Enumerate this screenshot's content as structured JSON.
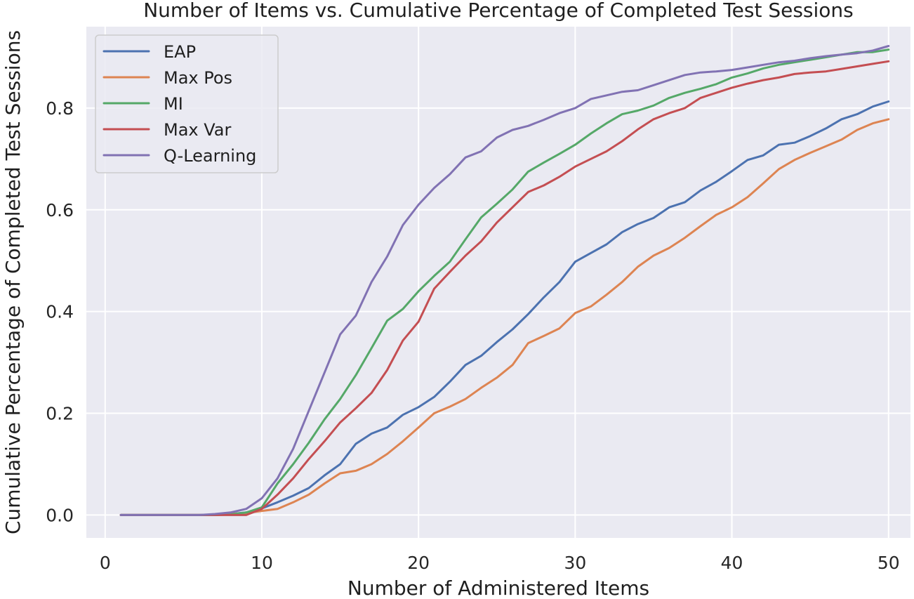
{
  "chart_data": {
    "type": "line",
    "title": "Number of Items vs. Cumulative Percentage of Completed Test Sessions",
    "xlabel": "Number of Administered Items",
    "ylabel": "Cumulative Percentage of Completed Test Sessions",
    "xlim": [
      -1.2,
      51.4
    ],
    "ylim": [
      -0.045,
      0.96
    ],
    "xticks": [
      0,
      10,
      20,
      30,
      40,
      50
    ],
    "yticks": [
      0.0,
      0.2,
      0.4,
      0.6,
      0.8
    ],
    "xtick_labels": [
      "0",
      "10",
      "20",
      "30",
      "40",
      "50"
    ],
    "ytick_labels": [
      "0.0",
      "0.2",
      "0.4",
      "0.6",
      "0.8"
    ],
    "grid": true,
    "legend_position": "top-left",
    "x": [
      1,
      2,
      3,
      4,
      5,
      6,
      7,
      8,
      9,
      10,
      11,
      12,
      13,
      14,
      15,
      16,
      17,
      18,
      19,
      20,
      21,
      22,
      23,
      24,
      25,
      26,
      27,
      28,
      29,
      30,
      31,
      32,
      33,
      34,
      35,
      36,
      37,
      38,
      39,
      40,
      41,
      42,
      43,
      44,
      45,
      46,
      47,
      48,
      49,
      50
    ],
    "series": [
      {
        "name": "EAP",
        "color": "#4c72b0",
        "values": [
          0,
          0,
          0,
          0,
          0,
          0,
          0,
          0.002,
          0.005,
          0.013,
          0.025,
          0.038,
          0.053,
          0.078,
          0.1,
          0.14,
          0.16,
          0.172,
          0.197,
          0.212,
          0.232,
          0.262,
          0.295,
          0.313,
          0.34,
          0.365,
          0.395,
          0.428,
          0.458,
          0.498,
          0.515,
          0.532,
          0.556,
          0.572,
          0.584,
          0.605,
          0.615,
          0.638,
          0.655,
          0.676,
          0.698,
          0.707,
          0.728,
          0.732,
          0.745,
          0.76,
          0.778,
          0.788,
          0.803,
          0.813
        ]
      },
      {
        "name": "Max Pos",
        "color": "#dd8452",
        "values": [
          0,
          0,
          0,
          0,
          0,
          0,
          0,
          0.002,
          0.004,
          0.008,
          0.012,
          0.025,
          0.04,
          0.062,
          0.082,
          0.087,
          0.1,
          0.12,
          0.145,
          0.172,
          0.2,
          0.213,
          0.228,
          0.25,
          0.27,
          0.295,
          0.338,
          0.352,
          0.367,
          0.397,
          0.41,
          0.433,
          0.458,
          0.488,
          0.51,
          0.525,
          0.545,
          0.568,
          0.59,
          0.605,
          0.625,
          0.652,
          0.68,
          0.698,
          0.712,
          0.725,
          0.738,
          0.757,
          0.77,
          0.778
        ]
      },
      {
        "name": "MI",
        "color": "#55a868",
        "values": [
          0,
          0,
          0,
          0,
          0,
          0,
          0,
          0.001,
          0.005,
          0.015,
          0.062,
          0.1,
          0.142,
          0.188,
          0.228,
          0.275,
          0.328,
          0.382,
          0.405,
          0.44,
          0.47,
          0.498,
          0.542,
          0.585,
          0.612,
          0.64,
          0.675,
          0.693,
          0.71,
          0.728,
          0.75,
          0.77,
          0.788,
          0.795,
          0.805,
          0.82,
          0.83,
          0.838,
          0.847,
          0.86,
          0.868,
          0.878,
          0.885,
          0.89,
          0.895,
          0.9,
          0.905,
          0.91,
          0.91,
          0.915
        ]
      },
      {
        "name": "Max Var",
        "color": "#c44e52",
        "values": [
          0,
          0,
          0,
          0,
          0,
          0,
          0,
          0,
          0,
          0.012,
          0.04,
          0.072,
          0.11,
          0.145,
          0.182,
          0.21,
          0.24,
          0.285,
          0.343,
          0.38,
          0.445,
          0.478,
          0.51,
          0.538,
          0.575,
          0.605,
          0.635,
          0.648,
          0.665,
          0.685,
          0.7,
          0.715,
          0.735,
          0.758,
          0.778,
          0.79,
          0.8,
          0.82,
          0.83,
          0.84,
          0.848,
          0.855,
          0.86,
          0.867,
          0.87,
          0.872,
          0.877,
          0.882,
          0.887,
          0.892
        ]
      },
      {
        "name": "Q-Learning",
        "color": "#8172b3",
        "values": [
          0,
          0,
          0,
          0,
          0,
          0,
          0.002,
          0.005,
          0.012,
          0.033,
          0.072,
          0.13,
          0.205,
          0.28,
          0.355,
          0.392,
          0.458,
          0.508,
          0.57,
          0.61,
          0.643,
          0.67,
          0.703,
          0.715,
          0.742,
          0.757,
          0.765,
          0.777,
          0.79,
          0.8,
          0.818,
          0.825,
          0.832,
          0.835,
          0.845,
          0.855,
          0.865,
          0.87,
          0.872,
          0.875,
          0.88,
          0.885,
          0.89,
          0.893,
          0.898,
          0.902,
          0.905,
          0.908,
          0.913,
          0.922
        ]
      }
    ]
  }
}
